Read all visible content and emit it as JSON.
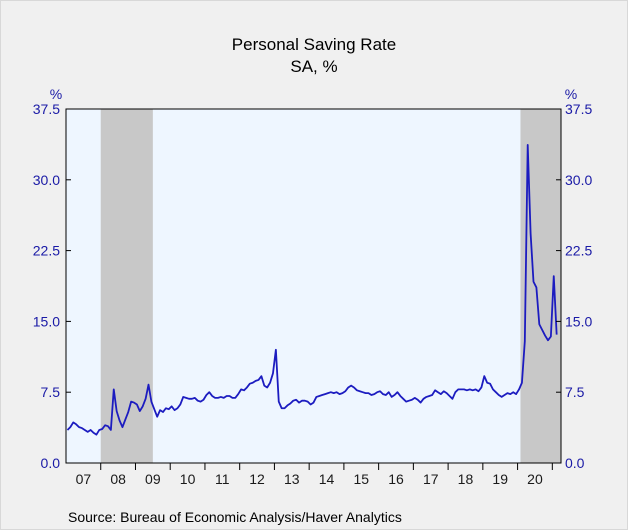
{
  "chart_data": {
    "type": "line",
    "title": "Personal Saving Rate",
    "subtitle": "SA, %",
    "ylabel_left": "%",
    "ylabel_right": "%",
    "source": "Source:  Bureau of Economic Analysis/Haver Analytics",
    "ylim": [
      0,
      37.5
    ],
    "y_ticks": [
      "37.5",
      "30.0",
      "22.5",
      "15.0",
      "7.5",
      "0.0"
    ],
    "x_tick_labels": [
      "07",
      "08",
      "09",
      "10",
      "11",
      "12",
      "13",
      "14",
      "15",
      "16",
      "17",
      "18",
      "19",
      "20"
    ],
    "xlim": [
      "2007-01",
      "2021-03"
    ],
    "grid": false,
    "recessions": [
      {
        "start": "2008-01",
        "end": "2009-06"
      },
      {
        "start": "2020-02",
        "end": "2021-03"
      }
    ],
    "colors": {
      "line": "#1c1cc0",
      "plot_bg": "#eef6ff",
      "recession": "#c8c8c8",
      "tick_text": "#1a1aa6"
    },
    "series": [
      {
        "points": [
          [
            "2007-01",
            3.5
          ],
          [
            "2007-02",
            3.8
          ],
          [
            "2007-03",
            4.3
          ],
          [
            "2007-04",
            4.1
          ],
          [
            "2007-05",
            3.8
          ],
          [
            "2007-06",
            3.7
          ],
          [
            "2007-07",
            3.5
          ],
          [
            "2007-08",
            3.3
          ],
          [
            "2007-09",
            3.5
          ],
          [
            "2007-10",
            3.2
          ],
          [
            "2007-11",
            3.0
          ],
          [
            "2007-12",
            3.5
          ],
          [
            "2008-01",
            3.6
          ],
          [
            "2008-02",
            4.0
          ],
          [
            "2008-03",
            3.9
          ],
          [
            "2008-04",
            3.5
          ],
          [
            "2008-05",
            7.8
          ],
          [
            "2008-06",
            5.5
          ],
          [
            "2008-07",
            4.5
          ],
          [
            "2008-08",
            3.8
          ],
          [
            "2008-09",
            4.6
          ],
          [
            "2008-10",
            5.4
          ],
          [
            "2008-11",
            6.5
          ],
          [
            "2008-12",
            6.4
          ],
          [
            "2009-01",
            6.2
          ],
          [
            "2009-02",
            5.5
          ],
          [
            "2009-03",
            6.0
          ],
          [
            "2009-04",
            6.8
          ],
          [
            "2009-05",
            8.3
          ],
          [
            "2009-06",
            6.5
          ],
          [
            "2009-07",
            5.7
          ],
          [
            "2009-08",
            4.9
          ],
          [
            "2009-09",
            5.6
          ],
          [
            "2009-10",
            5.4
          ],
          [
            "2009-11",
            5.8
          ],
          [
            "2009-12",
            5.7
          ],
          [
            "2010-01",
            6.0
          ],
          [
            "2010-02",
            5.6
          ],
          [
            "2010-03",
            5.8
          ],
          [
            "2010-04",
            6.2
          ],
          [
            "2010-05",
            7.0
          ],
          [
            "2010-06",
            6.9
          ],
          [
            "2010-07",
            6.8
          ],
          [
            "2010-08",
            6.8
          ],
          [
            "2010-09",
            6.9
          ],
          [
            "2010-10",
            6.6
          ],
          [
            "2010-11",
            6.5
          ],
          [
            "2010-12",
            6.7
          ],
          [
            "2011-01",
            7.2
          ],
          [
            "2011-02",
            7.5
          ],
          [
            "2011-03",
            7.1
          ],
          [
            "2011-04",
            6.9
          ],
          [
            "2011-05",
            6.9
          ],
          [
            "2011-06",
            7.0
          ],
          [
            "2011-07",
            6.9
          ],
          [
            "2011-08",
            7.1
          ],
          [
            "2011-09",
            7.1
          ],
          [
            "2011-10",
            6.9
          ],
          [
            "2011-11",
            6.9
          ],
          [
            "2011-12",
            7.3
          ],
          [
            "2012-01",
            7.8
          ],
          [
            "2012-02",
            7.7
          ],
          [
            "2012-03",
            8.0
          ],
          [
            "2012-04",
            8.4
          ],
          [
            "2012-05",
            8.5
          ],
          [
            "2012-06",
            8.7
          ],
          [
            "2012-07",
            8.8
          ],
          [
            "2012-08",
            9.2
          ],
          [
            "2012-09",
            8.2
          ],
          [
            "2012-10",
            8.0
          ],
          [
            "2012-11",
            8.5
          ],
          [
            "2012-12",
            9.5
          ],
          [
            "2013-01",
            12.0
          ],
          [
            "2013-02",
            6.5
          ],
          [
            "2013-03",
            5.8
          ],
          [
            "2013-04",
            5.8
          ],
          [
            "2013-05",
            6.1
          ],
          [
            "2013-06",
            6.3
          ],
          [
            "2013-07",
            6.6
          ],
          [
            "2013-08",
            6.7
          ],
          [
            "2013-09",
            6.4
          ],
          [
            "2013-10",
            6.6
          ],
          [
            "2013-11",
            6.6
          ],
          [
            "2013-12",
            6.5
          ],
          [
            "2014-01",
            6.2
          ],
          [
            "2014-02",
            6.4
          ],
          [
            "2014-03",
            7.0
          ],
          [
            "2014-04",
            7.1
          ],
          [
            "2014-05",
            7.2
          ],
          [
            "2014-06",
            7.3
          ],
          [
            "2014-07",
            7.4
          ],
          [
            "2014-08",
            7.5
          ],
          [
            "2014-09",
            7.4
          ],
          [
            "2014-10",
            7.5
          ],
          [
            "2014-11",
            7.3
          ],
          [
            "2014-12",
            7.4
          ],
          [
            "2015-01",
            7.6
          ],
          [
            "2015-02",
            8.0
          ],
          [
            "2015-03",
            8.2
          ],
          [
            "2015-04",
            8.0
          ],
          [
            "2015-05",
            7.7
          ],
          [
            "2015-06",
            7.6
          ],
          [
            "2015-07",
            7.5
          ],
          [
            "2015-08",
            7.4
          ],
          [
            "2015-09",
            7.4
          ],
          [
            "2015-10",
            7.2
          ],
          [
            "2015-11",
            7.3
          ],
          [
            "2015-12",
            7.5
          ],
          [
            "2016-01",
            7.6
          ],
          [
            "2016-02",
            7.3
          ],
          [
            "2016-03",
            7.2
          ],
          [
            "2016-04",
            7.5
          ],
          [
            "2016-05",
            7.0
          ],
          [
            "2016-06",
            7.2
          ],
          [
            "2016-07",
            7.5
          ],
          [
            "2016-08",
            7.1
          ],
          [
            "2016-09",
            6.8
          ],
          [
            "2016-10",
            6.5
          ],
          [
            "2016-11",
            6.6
          ],
          [
            "2016-12",
            6.7
          ],
          [
            "2017-01",
            6.9
          ],
          [
            "2017-02",
            6.7
          ],
          [
            "2017-03",
            6.4
          ],
          [
            "2017-04",
            6.8
          ],
          [
            "2017-05",
            7.0
          ],
          [
            "2017-06",
            7.1
          ],
          [
            "2017-07",
            7.2
          ],
          [
            "2017-08",
            7.7
          ],
          [
            "2017-09",
            7.5
          ],
          [
            "2017-10",
            7.3
          ],
          [
            "2017-11",
            7.6
          ],
          [
            "2017-12",
            7.4
          ],
          [
            "2018-01",
            7.1
          ],
          [
            "2018-02",
            6.8
          ],
          [
            "2018-03",
            7.5
          ],
          [
            "2018-04",
            7.8
          ],
          [
            "2018-05",
            7.8
          ],
          [
            "2018-06",
            7.8
          ],
          [
            "2018-07",
            7.7
          ],
          [
            "2018-08",
            7.8
          ],
          [
            "2018-09",
            7.7
          ],
          [
            "2018-10",
            7.8
          ],
          [
            "2018-11",
            7.6
          ],
          [
            "2018-12",
            8.0
          ],
          [
            "2019-01",
            9.2
          ],
          [
            "2019-02",
            8.5
          ],
          [
            "2019-03",
            8.4
          ],
          [
            "2019-04",
            7.8
          ],
          [
            "2019-05",
            7.5
          ],
          [
            "2019-06",
            7.2
          ],
          [
            "2019-07",
            7.0
          ],
          [
            "2019-08",
            7.2
          ],
          [
            "2019-09",
            7.4
          ],
          [
            "2019-10",
            7.3
          ],
          [
            "2019-11",
            7.5
          ],
          [
            "2019-12",
            7.3
          ],
          [
            "2020-01",
            7.8
          ],
          [
            "2020-02",
            8.5
          ],
          [
            "2020-03",
            12.9
          ],
          [
            "2020-04",
            33.7
          ],
          [
            "2020-05",
            24.3
          ],
          [
            "2020-06",
            19.2
          ],
          [
            "2020-07",
            18.6
          ],
          [
            "2020-08",
            14.7
          ],
          [
            "2020-09",
            14.1
          ],
          [
            "2020-10",
            13.5
          ],
          [
            "2020-11",
            13.0
          ],
          [
            "2020-12",
            13.4
          ],
          [
            "2021-01",
            19.8
          ],
          [
            "2021-02",
            13.6
          ]
        ]
      }
    ]
  }
}
